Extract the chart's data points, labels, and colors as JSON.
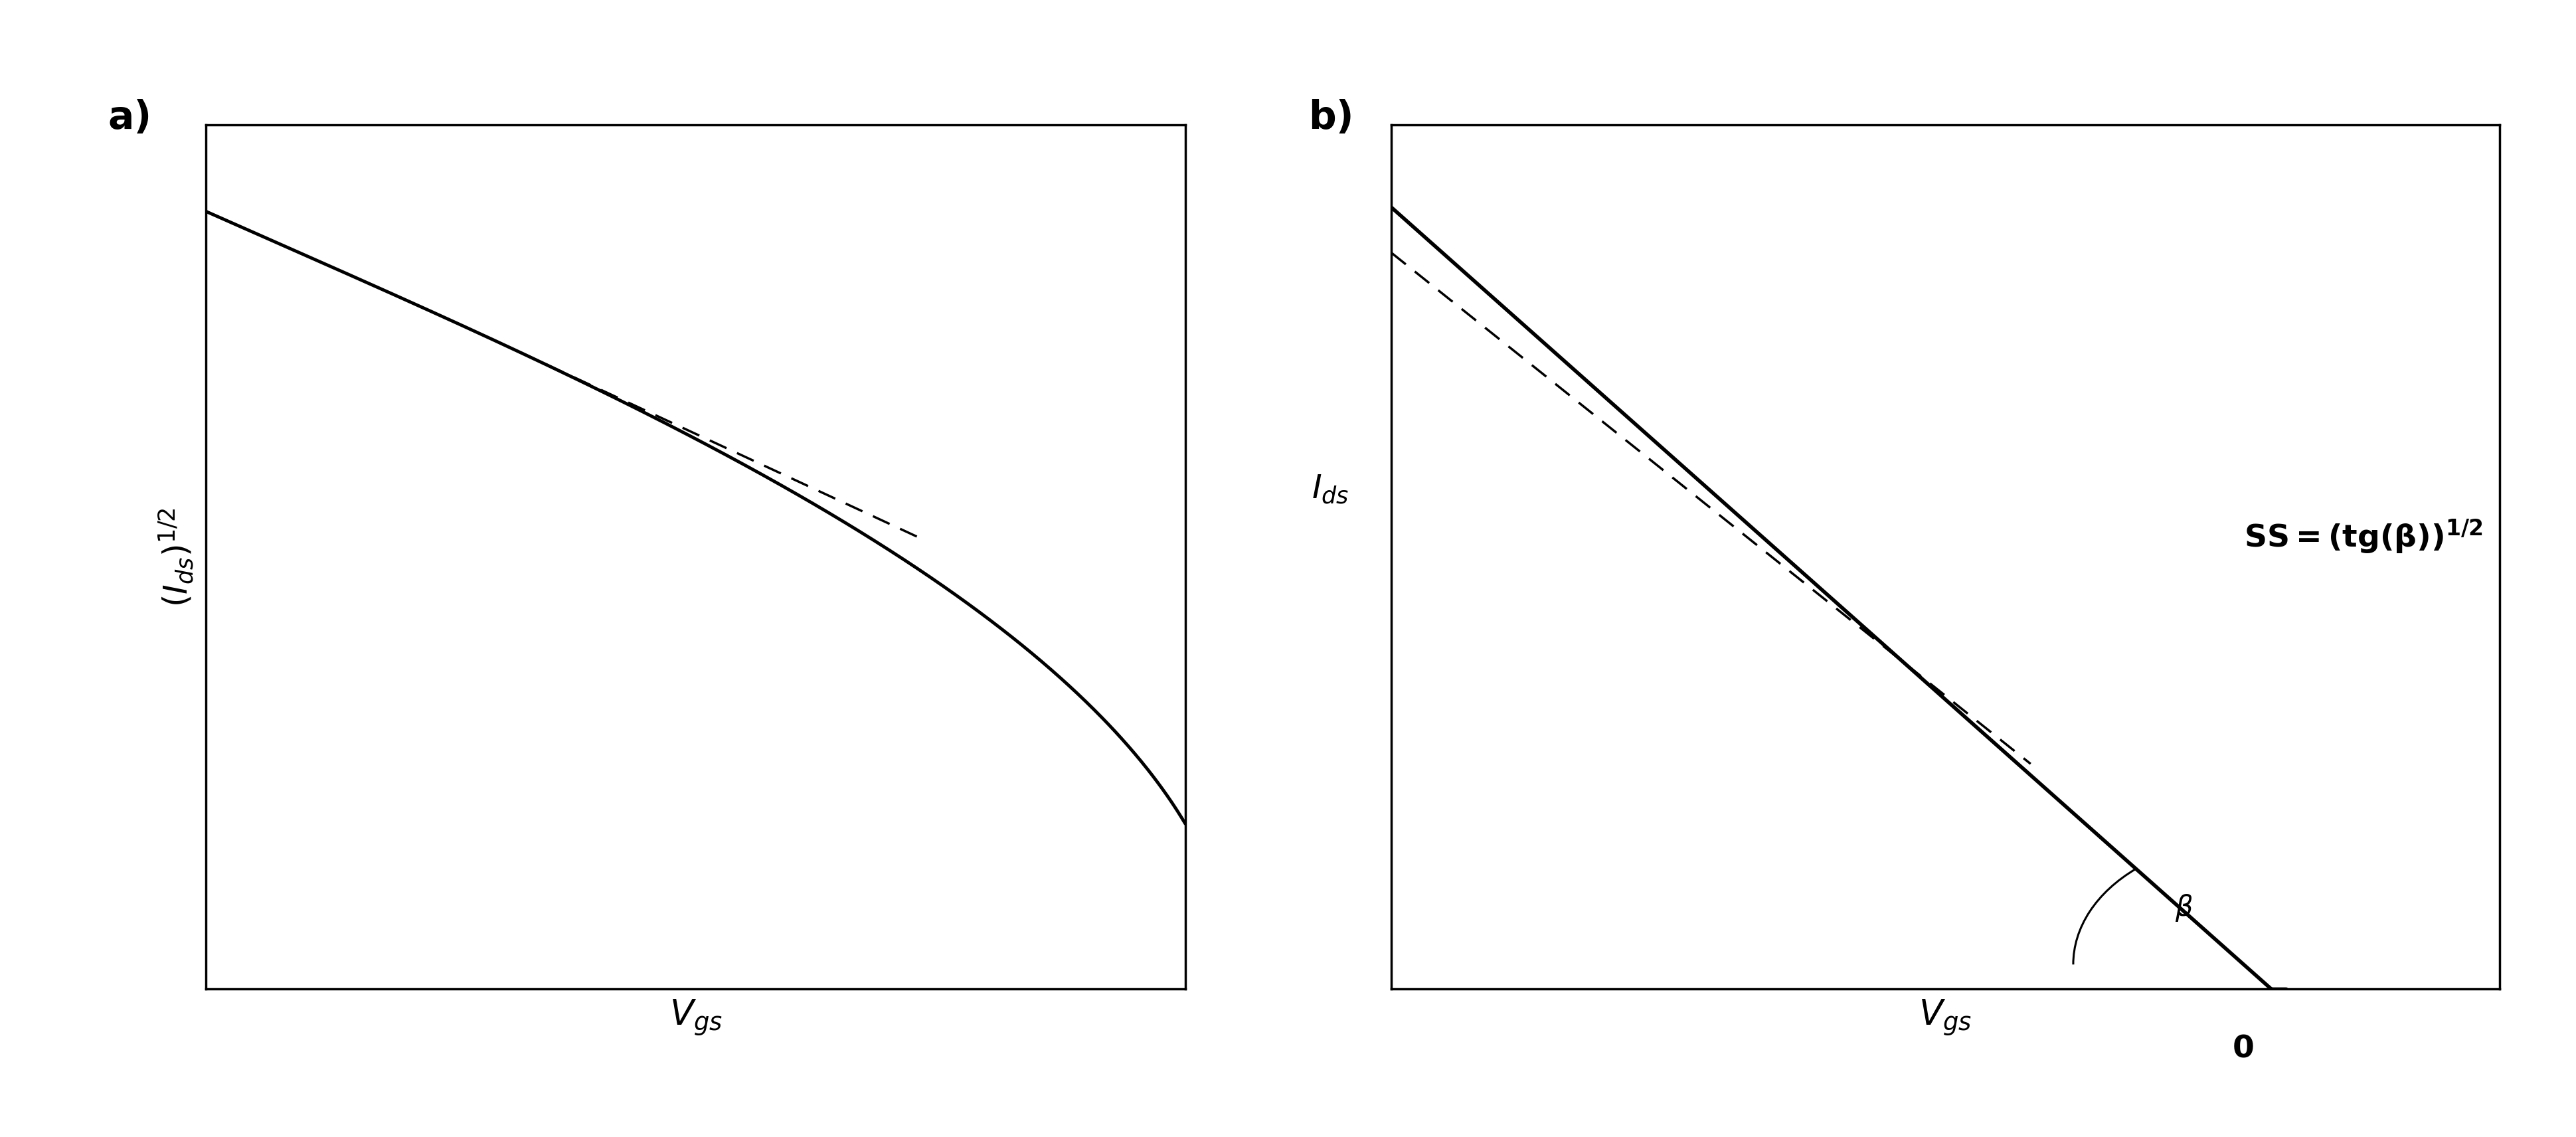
{
  "fig_width": 38.8,
  "fig_height": 17.12,
  "background_color": "#ffffff",
  "panel_a": {
    "label": "a)",
    "xlabel": "$V_{gs}$",
    "ylabel": "$(I_{ds})^{1/2}$",
    "curve_color": "#000000",
    "dashed_color": "#000000",
    "linewidth": 3.5,
    "dashed_linewidth": 2.5,
    "xlabel_fontsize": 38,
    "ylabel_fontsize": 36,
    "label_fontsize": 42
  },
  "panel_b": {
    "label": "b)",
    "xlabel": "$V_{gs}$",
    "ylabel": "$I_{ds}$",
    "annotation_beta": "\\u03b2",
    "annotation_zero": "0",
    "annotation_ss": "SS=(tg(\\u03b2))$^{1/2}$",
    "curve_color": "#000000",
    "dashed_color": "#000000",
    "linewidth": 4.0,
    "dashed_linewidth": 2.5,
    "xlabel_fontsize": 38,
    "ylabel_fontsize": 36,
    "label_fontsize": 42
  }
}
